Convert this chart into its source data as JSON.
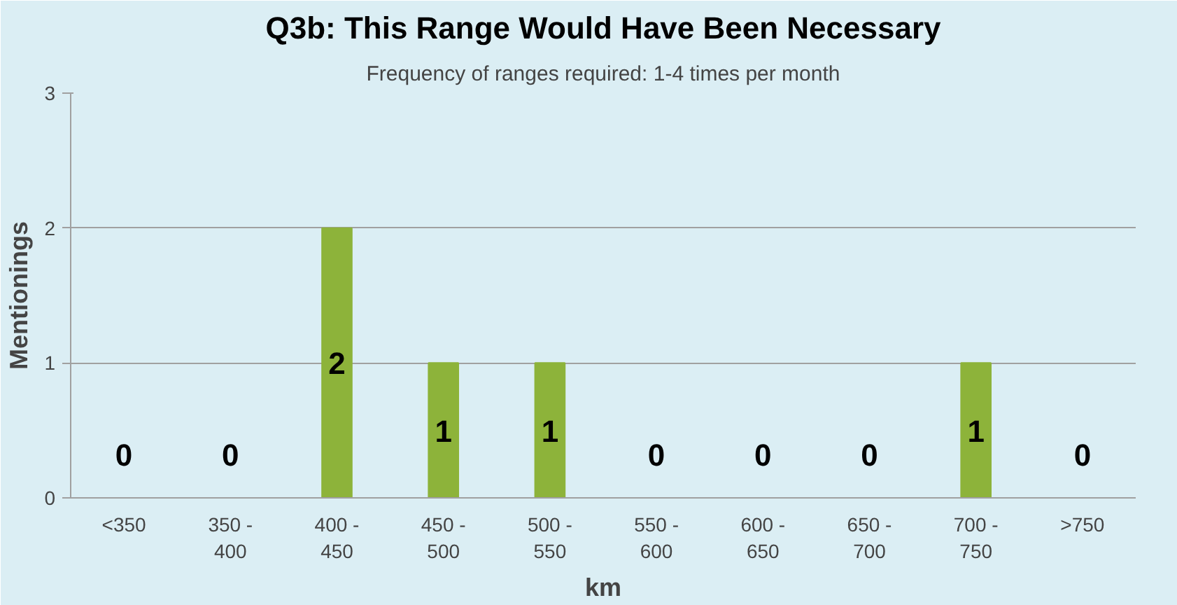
{
  "chart_data": {
    "type": "bar",
    "title": "Q3b: This Range Would Have Been Necessary",
    "subtitle": "Frequency of ranges required: 1-4 times per month",
    "xlabel": "km",
    "ylabel": "Mentionings",
    "categories": [
      "<350",
      "350 - 400",
      "400 - 450",
      "450 - 500",
      "500 - 550",
      "550 - 600",
      "600 - 650",
      "650 - 700",
      "700 - 750",
      ">750"
    ],
    "values": [
      0,
      0,
      2,
      1,
      1,
      0,
      0,
      0,
      1,
      0
    ],
    "color": "#8db33a",
    "ylim": [
      0,
      3
    ],
    "yticks": [
      0,
      1,
      2,
      3
    ],
    "grid": "y",
    "data_labels": true
  }
}
